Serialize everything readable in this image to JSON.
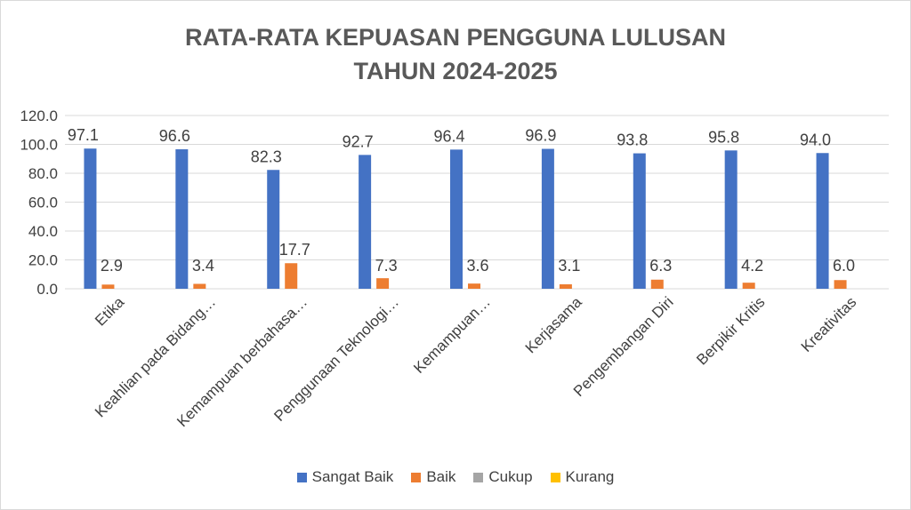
{
  "chart_data": {
    "type": "bar",
    "title": [
      "RATA-RATA KEPUASAN PENGGUNA LULUSAN",
      "TAHUN 2024-2025"
    ],
    "categories": [
      "Etika",
      "Keahlian pada Bidang…",
      "Kemampuan berbahasa…",
      "Penggunaan Teknologi…",
      "Kemampuan…",
      "Kerjasama",
      "Pengembangan Diri",
      "Berpikir Kritis",
      "Kreativitas"
    ],
    "series": [
      {
        "name": "Sangat Baik",
        "color": "#4472C4",
        "values": [
          97.1,
          96.6,
          82.3,
          92.7,
          96.4,
          96.9,
          93.8,
          95.8,
          94.0
        ],
        "labels": [
          "97.1",
          "96.6",
          "82.3",
          "92.7",
          "96.4",
          "96.9",
          "93.8",
          "95.8",
          "94.0"
        ]
      },
      {
        "name": "Baik",
        "color": "#ED7D31",
        "values": [
          2.9,
          3.4,
          17.7,
          7.3,
          3.6,
          3.1,
          6.3,
          4.2,
          6.0
        ],
        "labels": [
          "2.9",
          "3.4",
          "17.7",
          "7.3",
          "3.6",
          "3.1",
          "6.3",
          "4.2",
          "6.0"
        ]
      },
      {
        "name": "Cukup",
        "color": "#A5A5A5",
        "values": [
          0,
          0,
          0,
          0,
          0,
          0,
          0,
          0,
          0
        ]
      },
      {
        "name": "Kurang",
        "color": "#FFC000",
        "values": [
          0,
          0,
          0,
          0,
          0,
          0,
          0,
          0,
          0
        ]
      }
    ],
    "ylim": [
      0,
      120
    ],
    "yticks": [
      "0.0",
      "20.0",
      "40.0",
      "60.0",
      "80.0",
      "100.0",
      "120.0"
    ],
    "grid": true,
    "legend_position": "bottom"
  }
}
